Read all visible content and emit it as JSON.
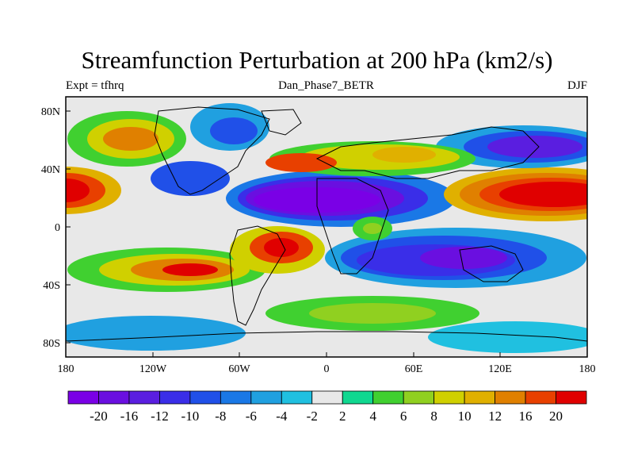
{
  "title": "Streamfunction Perturbation at 200 hPa (km2/s)",
  "subtitle_left": "Expt = tfhrq",
  "subtitle_center": "Dan_Phase7_BETR",
  "subtitle_right": "DJF",
  "x_ticks": [
    "180",
    "120W",
    "60W",
    "0",
    "60E",
    "120E",
    "180"
  ],
  "y_ticks": [
    "80N",
    "40N",
    "0",
    "40S",
    "80S"
  ],
  "colorbar": {
    "colors": [
      "#7a00e6",
      "#6a0fe0",
      "#5a1ee0",
      "#3a2ee8",
      "#2050e8",
      "#1a78e6",
      "#20a0e0",
      "#20c0e0",
      "#e8e8e8",
      "#10d890",
      "#40d030",
      "#90d020",
      "#d0d000",
      "#e0b000",
      "#e08000",
      "#e84000",
      "#e00000"
    ],
    "labels": [
      "-20",
      "-16",
      "-12",
      "-10",
      "-8",
      "-6",
      "-4",
      "-2",
      "2",
      "4",
      "6",
      "8",
      "10",
      "12",
      "16",
      "20"
    ]
  }
}
